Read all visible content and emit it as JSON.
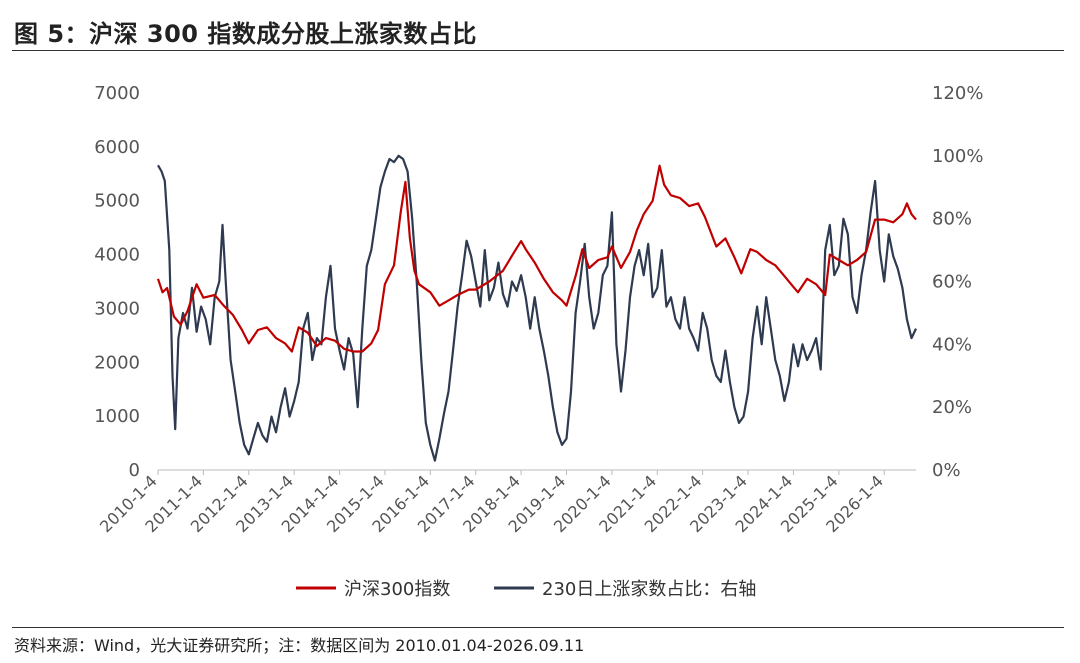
{
  "header": {
    "title": "图 5：沪深 300 指数成分股上涨家数占比"
  },
  "footer": {
    "source": "资料来源：Wind，光大证券研究所；注：数据区间为 2010.01.04-2026.09.11"
  },
  "colors": {
    "index": "#C00000",
    "ratio": "#2E3A4F",
    "axis": "#BBBBBB"
  },
  "chart_data": {
    "type": "line",
    "y_left": {
      "ticks": [
        "0",
        "1000",
        "2000",
        "3000",
        "4000",
        "5000",
        "6000",
        "7000"
      ],
      "range": [
        0,
        7000
      ]
    },
    "y_right": {
      "ticks": [
        "0%",
        "20%",
        "40%",
        "60%",
        "80%",
        "100%",
        "120%"
      ],
      "range": [
        0,
        1.2
      ]
    },
    "x": {
      "ticks": [
        "2010-1-4",
        "2011-1-4",
        "2012-1-4",
        "2013-1-4",
        "2014-1-4",
        "2015-1-4",
        "2016-1-4",
        "2017-1-4",
        "2018-1-4",
        "2019-1-4",
        "2020-1-4",
        "2021-1-4",
        "2022-1-4",
        "2023-1-4",
        "2024-1-4",
        "2025-1-4",
        "2026-1-4"
      ],
      "range": [
        2010.0,
        2026.7
      ]
    },
    "legend": {
      "placement": "bottom"
    },
    "series": [
      {
        "name": "沪深300指数",
        "axis": "left",
        "points": [
          [
            2010.0,
            3550
          ],
          [
            2010.1,
            3300
          ],
          [
            2010.2,
            3380
          ],
          [
            2010.35,
            2850
          ],
          [
            2010.5,
            2700
          ],
          [
            2010.65,
            2950
          ],
          [
            2010.85,
            3450
          ],
          [
            2011.0,
            3200
          ],
          [
            2011.25,
            3250
          ],
          [
            2011.45,
            3050
          ],
          [
            2011.65,
            2880
          ],
          [
            2011.85,
            2600
          ],
          [
            2012.0,
            2350
          ],
          [
            2012.2,
            2600
          ],
          [
            2012.4,
            2650
          ],
          [
            2012.6,
            2450
          ],
          [
            2012.8,
            2350
          ],
          [
            2012.95,
            2200
          ],
          [
            2013.1,
            2650
          ],
          [
            2013.3,
            2550
          ],
          [
            2013.5,
            2300
          ],
          [
            2013.7,
            2450
          ],
          [
            2013.9,
            2400
          ],
          [
            2014.1,
            2250
          ],
          [
            2014.3,
            2200
          ],
          [
            2014.5,
            2200
          ],
          [
            2014.7,
            2350
          ],
          [
            2014.85,
            2600
          ],
          [
            2015.0,
            3450
          ],
          [
            2015.2,
            3800
          ],
          [
            2015.35,
            4800
          ],
          [
            2015.45,
            5350
          ],
          [
            2015.55,
            4300
          ],
          [
            2015.65,
            3700
          ],
          [
            2015.75,
            3450
          ],
          [
            2016.0,
            3300
          ],
          [
            2016.2,
            3050
          ],
          [
            2016.4,
            3150
          ],
          [
            2016.6,
            3250
          ],
          [
            2016.85,
            3350
          ],
          [
            2017.0,
            3350
          ],
          [
            2017.3,
            3500
          ],
          [
            2017.6,
            3700
          ],
          [
            2017.85,
            4050
          ],
          [
            2018.0,
            4250
          ],
          [
            2018.1,
            4100
          ],
          [
            2018.3,
            3850
          ],
          [
            2018.5,
            3550
          ],
          [
            2018.7,
            3300
          ],
          [
            2018.9,
            3150
          ],
          [
            2019.0,
            3050
          ],
          [
            2019.2,
            3600
          ],
          [
            2019.35,
            4100
          ],
          [
            2019.5,
            3750
          ],
          [
            2019.7,
            3900
          ],
          [
            2019.9,
            3950
          ],
          [
            2020.0,
            4150
          ],
          [
            2020.2,
            3750
          ],
          [
            2020.4,
            4050
          ],
          [
            2020.55,
            4450
          ],
          [
            2020.7,
            4750
          ],
          [
            2020.9,
            5000
          ],
          [
            2021.05,
            5650
          ],
          [
            2021.15,
            5300
          ],
          [
            2021.3,
            5100
          ],
          [
            2021.5,
            5050
          ],
          [
            2021.7,
            4900
          ],
          [
            2021.9,
            4950
          ],
          [
            2022.05,
            4700
          ],
          [
            2022.3,
            4150
          ],
          [
            2022.5,
            4300
          ],
          [
            2022.7,
            3950
          ],
          [
            2022.85,
            3650
          ],
          [
            2023.05,
            4100
          ],
          [
            2023.2,
            4050
          ],
          [
            2023.4,
            3900
          ],
          [
            2023.6,
            3800
          ],
          [
            2023.8,
            3600
          ],
          [
            2024.0,
            3400
          ],
          [
            2024.1,
            3300
          ],
          [
            2024.3,
            3550
          ],
          [
            2024.5,
            3450
          ],
          [
            2024.7,
            3250
          ],
          [
            2024.8,
            4000
          ],
          [
            2025.0,
            3900
          ],
          [
            2025.2,
            3800
          ],
          [
            2025.4,
            3900
          ],
          [
            2025.6,
            4050
          ],
          [
            2025.8,
            4650
          ],
          [
            2026.0,
            4650
          ],
          [
            2026.2,
            4600
          ],
          [
            2026.4,
            4750
          ],
          [
            2026.5,
            4950
          ],
          [
            2026.6,
            4750
          ],
          [
            2026.7,
            4650
          ]
        ]
      },
      {
        "name": "230日上涨家数占比：右轴",
        "axis": "right",
        "points": [
          [
            2010.0,
            0.97
          ],
          [
            2010.08,
            0.95
          ],
          [
            2010.15,
            0.92
          ],
          [
            2010.25,
            0.7
          ],
          [
            2010.32,
            0.3
          ],
          [
            2010.38,
            0.13
          ],
          [
            2010.45,
            0.42
          ],
          [
            2010.55,
            0.5
          ],
          [
            2010.65,
            0.45
          ],
          [
            2010.75,
            0.58
          ],
          [
            2010.85,
            0.44
          ],
          [
            2010.95,
            0.52
          ],
          [
            2011.05,
            0.48
          ],
          [
            2011.15,
            0.4
          ],
          [
            2011.25,
            0.55
          ],
          [
            2011.35,
            0.6
          ],
          [
            2011.42,
            0.78
          ],
          [
            2011.5,
            0.58
          ],
          [
            2011.6,
            0.35
          ],
          [
            2011.7,
            0.25
          ],
          [
            2011.8,
            0.15
          ],
          [
            2011.9,
            0.08
          ],
          [
            2012.0,
            0.05
          ],
          [
            2012.1,
            0.1
          ],
          [
            2012.2,
            0.15
          ],
          [
            2012.3,
            0.11
          ],
          [
            2012.4,
            0.09
          ],
          [
            2012.5,
            0.17
          ],
          [
            2012.6,
            0.12
          ],
          [
            2012.7,
            0.2
          ],
          [
            2012.8,
            0.26
          ],
          [
            2012.9,
            0.17
          ],
          [
            2013.0,
            0.22
          ],
          [
            2013.1,
            0.28
          ],
          [
            2013.2,
            0.45
          ],
          [
            2013.3,
            0.5
          ],
          [
            2013.4,
            0.35
          ],
          [
            2013.5,
            0.42
          ],
          [
            2013.6,
            0.4
          ],
          [
            2013.7,
            0.55
          ],
          [
            2013.8,
            0.65
          ],
          [
            2013.9,
            0.45
          ],
          [
            2014.0,
            0.38
          ],
          [
            2014.1,
            0.32
          ],
          [
            2014.2,
            0.42
          ],
          [
            2014.3,
            0.37
          ],
          [
            2014.4,
            0.2
          ],
          [
            2014.5,
            0.45
          ],
          [
            2014.6,
            0.65
          ],
          [
            2014.7,
            0.7
          ],
          [
            2014.8,
            0.8
          ],
          [
            2014.9,
            0.9
          ],
          [
            2015.0,
            0.95
          ],
          [
            2015.1,
            0.99
          ],
          [
            2015.2,
            0.98
          ],
          [
            2015.3,
            1.0
          ],
          [
            2015.4,
            0.99
          ],
          [
            2015.5,
            0.95
          ],
          [
            2015.6,
            0.8
          ],
          [
            2015.7,
            0.6
          ],
          [
            2015.8,
            0.35
          ],
          [
            2015.9,
            0.15
          ],
          [
            2016.0,
            0.08
          ],
          [
            2016.1,
            0.03
          ],
          [
            2016.2,
            0.1
          ],
          [
            2016.3,
            0.18
          ],
          [
            2016.4,
            0.25
          ],
          [
            2016.5,
            0.38
          ],
          [
            2016.6,
            0.52
          ],
          [
            2016.7,
            0.62
          ],
          [
            2016.8,
            0.73
          ],
          [
            2016.9,
            0.68
          ],
          [
            2017.0,
            0.6
          ],
          [
            2017.1,
            0.52
          ],
          [
            2017.2,
            0.7
          ],
          [
            2017.3,
            0.54
          ],
          [
            2017.4,
            0.58
          ],
          [
            2017.5,
            0.66
          ],
          [
            2017.6,
            0.56
          ],
          [
            2017.7,
            0.52
          ],
          [
            2017.8,
            0.6
          ],
          [
            2017.9,
            0.57
          ],
          [
            2018.0,
            0.62
          ],
          [
            2018.1,
            0.55
          ],
          [
            2018.2,
            0.45
          ],
          [
            2018.3,
            0.55
          ],
          [
            2018.4,
            0.45
          ],
          [
            2018.5,
            0.38
          ],
          [
            2018.6,
            0.3
          ],
          [
            2018.7,
            0.2
          ],
          [
            2018.8,
            0.12
          ],
          [
            2018.9,
            0.08
          ],
          [
            2019.0,
            0.1
          ],
          [
            2019.1,
            0.25
          ],
          [
            2019.2,
            0.5
          ],
          [
            2019.3,
            0.6
          ],
          [
            2019.4,
            0.72
          ],
          [
            2019.5,
            0.55
          ],
          [
            2019.6,
            0.45
          ],
          [
            2019.7,
            0.5
          ],
          [
            2019.8,
            0.62
          ],
          [
            2019.9,
            0.65
          ],
          [
            2020.0,
            0.82
          ],
          [
            2020.1,
            0.4
          ],
          [
            2020.2,
            0.25
          ],
          [
            2020.3,
            0.38
          ],
          [
            2020.4,
            0.55
          ],
          [
            2020.5,
            0.65
          ],
          [
            2020.6,
            0.7
          ],
          [
            2020.7,
            0.62
          ],
          [
            2020.8,
            0.72
          ],
          [
            2020.9,
            0.55
          ],
          [
            2021.0,
            0.58
          ],
          [
            2021.1,
            0.7
          ],
          [
            2021.2,
            0.52
          ],
          [
            2021.3,
            0.55
          ],
          [
            2021.4,
            0.48
          ],
          [
            2021.5,
            0.45
          ],
          [
            2021.6,
            0.55
          ],
          [
            2021.7,
            0.45
          ],
          [
            2021.8,
            0.42
          ],
          [
            2021.9,
            0.38
          ],
          [
            2022.0,
            0.5
          ],
          [
            2022.1,
            0.45
          ],
          [
            2022.2,
            0.35
          ],
          [
            2022.3,
            0.3
          ],
          [
            2022.4,
            0.28
          ],
          [
            2022.5,
            0.38
          ],
          [
            2022.6,
            0.28
          ],
          [
            2022.7,
            0.2
          ],
          [
            2022.8,
            0.15
          ],
          [
            2022.9,
            0.17
          ],
          [
            2023.0,
            0.25
          ],
          [
            2023.1,
            0.42
          ],
          [
            2023.2,
            0.52
          ],
          [
            2023.3,
            0.4
          ],
          [
            2023.4,
            0.55
          ],
          [
            2023.5,
            0.45
          ],
          [
            2023.6,
            0.35
          ],
          [
            2023.7,
            0.3
          ],
          [
            2023.8,
            0.22
          ],
          [
            2023.9,
            0.28
          ],
          [
            2024.0,
            0.4
          ],
          [
            2024.1,
            0.33
          ],
          [
            2024.2,
            0.4
          ],
          [
            2024.3,
            0.35
          ],
          [
            2024.4,
            0.38
          ],
          [
            2024.5,
            0.42
          ],
          [
            2024.6,
            0.32
          ],
          [
            2024.7,
            0.7
          ],
          [
            2024.8,
            0.78
          ],
          [
            2024.9,
            0.62
          ],
          [
            2025.0,
            0.65
          ],
          [
            2025.1,
            0.8
          ],
          [
            2025.2,
            0.75
          ],
          [
            2025.3,
            0.55
          ],
          [
            2025.4,
            0.5
          ],
          [
            2025.5,
            0.62
          ],
          [
            2025.6,
            0.7
          ],
          [
            2025.7,
            0.82
          ],
          [
            2025.8,
            0.92
          ],
          [
            2025.9,
            0.7
          ],
          [
            2026.0,
            0.6
          ],
          [
            2026.1,
            0.75
          ],
          [
            2026.2,
            0.68
          ],
          [
            2026.3,
            0.64
          ],
          [
            2026.4,
            0.58
          ],
          [
            2026.5,
            0.48
          ],
          [
            2026.6,
            0.42
          ],
          [
            2026.7,
            0.45
          ]
        ]
      }
    ]
  }
}
